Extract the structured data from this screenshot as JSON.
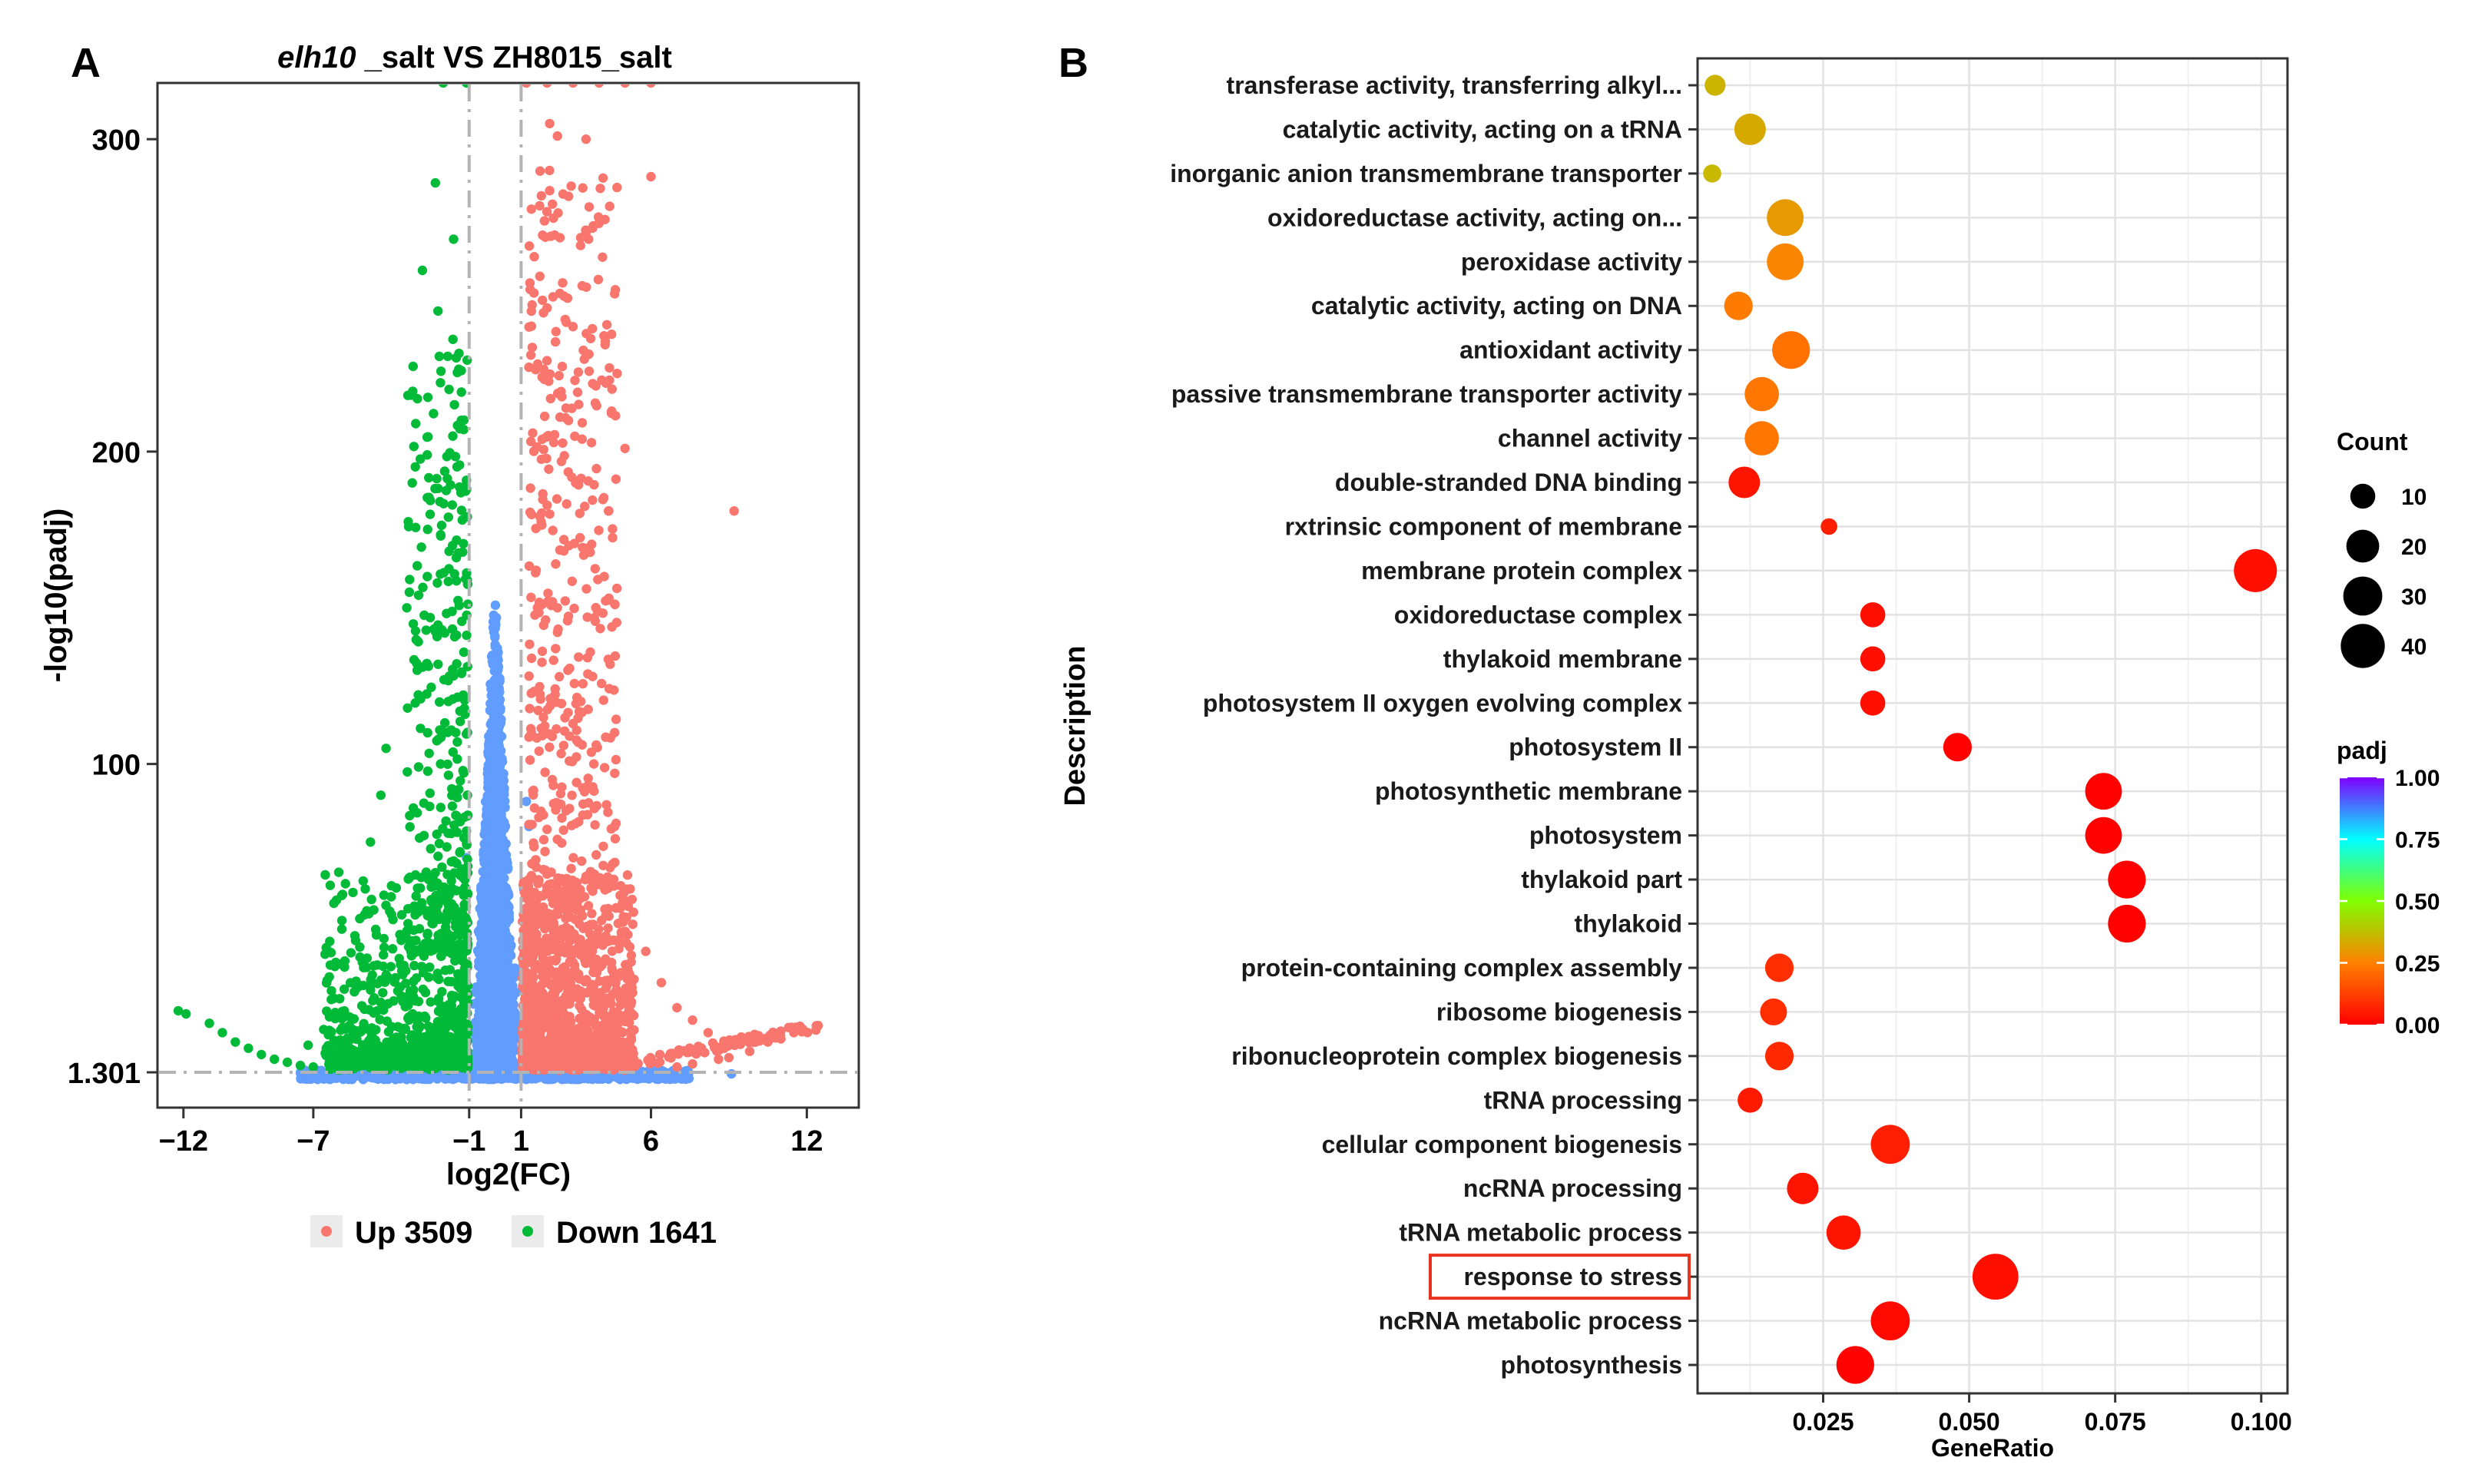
{
  "panels": {
    "a_label": "A",
    "b_label": "B"
  },
  "colors": {
    "up": "#F8766D",
    "down": "#00BA38",
    "nonsig": "#619CFF",
    "threshold": "#b3b3b3",
    "highlight_box": "#e8331f"
  },
  "chart_data": [
    {
      "type": "scatter",
      "title_italic": "elh10",
      "title_rest": " _salt VS ZH8015_salt",
      "xlabel": "log2(FC)",
      "ylabel": "-log10(padj)",
      "xlim": [
        -13,
        14
      ],
      "ylim": [
        -10,
        318
      ],
      "x_ticks": [
        -12,
        -7,
        -1,
        1,
        6,
        12
      ],
      "x_tick_labels": [
        "−12",
        "−7",
        "−1",
        "1",
        "6",
        "12"
      ],
      "y_ticks": [
        1.301,
        100,
        200,
        300
      ],
      "y_tick_labels": [
        "1.301",
        "100",
        "200",
        "300"
      ],
      "thresholds": {
        "x": [
          -1,
          1
        ],
        "y": 1.301
      },
      "legend": [
        {
          "label": "Up 3509",
          "group": "up"
        },
        {
          "label": "Down 1641",
          "group": "down"
        }
      ],
      "counts": {
        "up": 3509,
        "down": 1641
      },
      "highlight_points": {
        "up": [
          [
            1.2,
            318
          ],
          [
            2,
            318
          ],
          [
            3,
            318
          ],
          [
            4,
            318
          ],
          [
            5,
            318
          ],
          [
            6,
            318
          ],
          [
            2.1,
            305
          ],
          [
            2.4,
            301
          ],
          [
            3.5,
            300
          ],
          [
            6,
            288
          ],
          [
            3.6,
            268
          ],
          [
            2.6,
            254
          ],
          [
            3,
            240
          ],
          [
            9.2,
            181
          ],
          [
            4.5,
            220
          ],
          [
            5,
            201
          ],
          [
            12.4,
            16
          ],
          [
            11.5,
            14
          ],
          [
            11,
            12
          ],
          [
            10.5,
            11
          ],
          [
            9.8,
            8
          ],
          [
            9,
            6
          ],
          [
            8.6,
            5.5
          ],
          [
            7.6,
            4
          ],
          [
            7,
            3
          ],
          [
            2.1,
            180
          ],
          [
            3.1,
            190
          ],
          [
            2.4,
            150
          ],
          [
            4.2,
            160
          ],
          [
            3.3,
            120
          ],
          [
            2.8,
            130
          ],
          [
            1.4,
            110
          ],
          [
            2.2,
            95
          ],
          [
            3.8,
            100
          ],
          [
            4.6,
            80
          ],
          [
            5.2,
            60
          ],
          [
            5.8,
            40
          ],
          [
            6.4,
            30
          ],
          [
            7,
            22
          ],
          [
            7.6,
            18
          ],
          [
            8.2,
            14
          ]
        ],
        "down": [
          [
            -1.1,
            318
          ],
          [
            -2,
            318
          ],
          [
            -2.3,
            286
          ],
          [
            -1.6,
            268
          ],
          [
            -2.8,
            258
          ],
          [
            -2.2,
            245
          ],
          [
            -1.5,
            230
          ],
          [
            -1.3,
            210
          ],
          [
            -12.2,
            21
          ],
          [
            -11.9,
            20
          ],
          [
            -11,
            17
          ],
          [
            -10.5,
            14
          ],
          [
            -10,
            11
          ],
          [
            -9.5,
            9
          ],
          [
            -9,
            7
          ],
          [
            -8.5,
            5.5
          ],
          [
            -8,
            4.5
          ],
          [
            -7.5,
            3.5
          ],
          [
            -7,
            3
          ],
          [
            -3.4,
            150
          ],
          [
            -3,
            130
          ],
          [
            -2.6,
            110
          ],
          [
            -4.2,
            105
          ],
          [
            -4.4,
            90
          ],
          [
            -4.8,
            75
          ],
          [
            -5,
            60
          ],
          [
            -5.4,
            45
          ],
          [
            -5.8,
            35
          ],
          [
            -6.2,
            25
          ],
          [
            -6.6,
            15
          ],
          [
            -7.2,
            10
          ],
          [
            -1.8,
            120
          ],
          [
            -2.1,
            100
          ]
        ],
        "nonsig": [
          [
            9.1,
            0.8
          ],
          [
            1.2,
            88
          ],
          [
            1.3,
            80
          ],
          [
            1.1,
            60
          ],
          [
            -1.1,
            70
          ],
          [
            -1.4,
            50
          ]
        ]
      }
    },
    {
      "type": "scatter",
      "subtype": "go-enrichment-dotplot",
      "xlabel": "GeneRatio",
      "ylabel": "Description",
      "xlim": [
        0.0035,
        0.1045
      ],
      "x_ticks": [
        0.025,
        0.05,
        0.075,
        0.1
      ],
      "x_tick_labels": [
        "0.025",
        "0.050",
        "0.075",
        "0.100"
      ],
      "highlighted_term": "response to stress",
      "size_legend": {
        "title": "Count",
        "values": [
          10,
          20,
          30,
          40
        ],
        "labels": [
          "10",
          "20",
          "30",
          "40"
        ]
      },
      "color_legend": {
        "title": "padj",
        "range": [
          0,
          1
        ],
        "ticks": [
          0,
          0.25,
          0.5,
          0.75,
          1
        ],
        "tick_labels": [
          "0.00",
          "0.25",
          "0.50",
          "0.75",
          "1.00"
        ],
        "gradient": [
          "#FF0000",
          "#FF8000",
          "#80FF00",
          "#00FFFF",
          "#8000FF"
        ]
      },
      "terms": [
        {
          "label": "transferase activity, transferring alkyl...",
          "gene_ratio": 0.0065,
          "count": 6,
          "padj": 0.35
        },
        {
          "label": "catalytic activity, acting on a tRNA",
          "gene_ratio": 0.0125,
          "count": 18,
          "padj": 0.33
        },
        {
          "label": "inorganic anion transmembrane transporter",
          "gene_ratio": 0.006,
          "count": 4,
          "padj": 0.36
        },
        {
          "label": "oxidoreductase activity, acting on...",
          "gene_ratio": 0.0185,
          "count": 26,
          "padj": 0.3
        },
        {
          "label": "peroxidase activity",
          "gene_ratio": 0.0185,
          "count": 26,
          "padj": 0.26
        },
        {
          "label": "catalytic activity, acting on DNA",
          "gene_ratio": 0.0105,
          "count": 14,
          "padj": 0.24
        },
        {
          "label": "antioxidant activity",
          "gene_ratio": 0.0195,
          "count": 28,
          "padj": 0.22
        },
        {
          "label": "passive transmembrane transporter activity",
          "gene_ratio": 0.0145,
          "count": 22,
          "padj": 0.23
        },
        {
          "label": "channel activity",
          "gene_ratio": 0.0145,
          "count": 22,
          "padj": 0.23
        },
        {
          "label": "double-stranded DNA binding",
          "gene_ratio": 0.0115,
          "count": 18,
          "padj": 0.04
        },
        {
          "label": "rxtrinsic component of membrane",
          "gene_ratio": 0.026,
          "count": 3,
          "padj": 0.06
        },
        {
          "label": "membrane protein complex",
          "gene_ratio": 0.099,
          "count": 38,
          "padj": 0.03
        },
        {
          "label": "oxidoreductase complex",
          "gene_ratio": 0.0335,
          "count": 10,
          "padj": 0.03
        },
        {
          "label": "thylakoid membrane",
          "gene_ratio": 0.0335,
          "count": 10,
          "padj": 0.03
        },
        {
          "label": "photosystem II oxygen evolving complex",
          "gene_ratio": 0.0335,
          "count": 10,
          "padj": 0.03
        },
        {
          "label": "photosystem II",
          "gene_ratio": 0.048,
          "count": 14,
          "padj": 0.004
        },
        {
          "label": "photosynthetic membrane",
          "gene_ratio": 0.073,
          "count": 26,
          "padj": 0.004
        },
        {
          "label": "photosystem",
          "gene_ratio": 0.073,
          "count": 26,
          "padj": 0.004
        },
        {
          "label": "thylakoid part",
          "gene_ratio": 0.077,
          "count": 28,
          "padj": 0.004
        },
        {
          "label": "thylakoid",
          "gene_ratio": 0.077,
          "count": 28,
          "padj": 0.004
        },
        {
          "label": "protein-containing complex assembly",
          "gene_ratio": 0.0175,
          "count": 14,
          "padj": 0.09
        },
        {
          "label": "ribosome biogenesis",
          "gene_ratio": 0.0165,
          "count": 12,
          "padj": 0.09
        },
        {
          "label": "ribonucleoprotein complex biogenesis",
          "gene_ratio": 0.0175,
          "count": 14,
          "padj": 0.08
        },
        {
          "label": "tRNA processing",
          "gene_ratio": 0.0125,
          "count": 10,
          "padj": 0.05
        },
        {
          "label": "cellular component biogenesis",
          "gene_ratio": 0.0365,
          "count": 30,
          "padj": 0.06
        },
        {
          "label": "ncRNA processing",
          "gene_ratio": 0.0215,
          "count": 18,
          "padj": 0.04
        },
        {
          "label": "tRNA metabolic process",
          "gene_ratio": 0.0285,
          "count": 22,
          "padj": 0.04
        },
        {
          "label": "response to stress",
          "gene_ratio": 0.0545,
          "count": 44,
          "padj": 0.03
        },
        {
          "label": "ncRNA metabolic process",
          "gene_ratio": 0.0365,
          "count": 30,
          "padj": 0.02
        },
        {
          "label": "photosynthesis",
          "gene_ratio": 0.0305,
          "count": 28,
          "padj": 0.005
        }
      ]
    }
  ]
}
